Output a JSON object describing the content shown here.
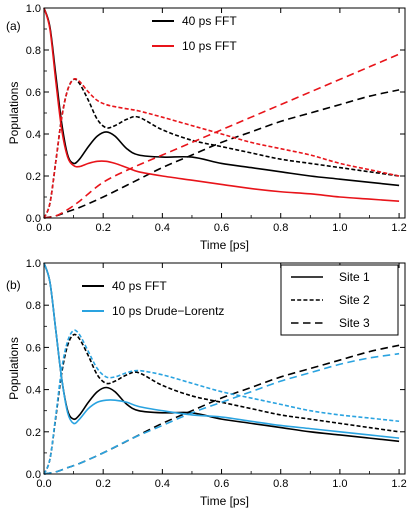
{
  "chart_data": [
    {
      "type": "line",
      "panel_label": "(a)",
      "xlabel": "Time [ps]",
      "ylabel": "Populations",
      "xlim": [
        0,
        1.22
      ],
      "ylim": [
        0,
        1.0
      ],
      "xticks": [
        0.0,
        0.2,
        0.4,
        0.6,
        0.8,
        1.0,
        1.2
      ],
      "xtick_labels": [
        "0.0",
        "0.2",
        "0.4",
        "0.6",
        "0.8",
        "1.0",
        "1.2"
      ],
      "yticks": [
        0.0,
        0.2,
        0.4,
        0.6,
        0.8,
        1.0
      ],
      "ytick_labels": [
        "0.0",
        "0.2",
        "0.4",
        "0.6",
        "0.8",
        "1.0"
      ],
      "grid": false,
      "legend": [
        {
          "label": "40 ps FFT",
          "color": "#000000"
        },
        {
          "label": "10 ps FFT",
          "color": "#e8141a"
        }
      ],
      "legend_position": "top-center",
      "series": [
        {
          "color": "#000000",
          "style": "solid",
          "site": 1,
          "x": [
            0,
            0.02,
            0.04,
            0.06,
            0.08,
            0.1,
            0.12,
            0.15,
            0.18,
            0.21,
            0.24,
            0.28,
            0.32,
            0.4,
            0.5,
            0.6,
            0.7,
            0.8,
            0.9,
            1.0,
            1.1,
            1.2
          ],
          "y": [
            1.0,
            0.91,
            0.68,
            0.45,
            0.3,
            0.26,
            0.28,
            0.34,
            0.39,
            0.41,
            0.39,
            0.33,
            0.3,
            0.29,
            0.29,
            0.26,
            0.24,
            0.22,
            0.2,
            0.185,
            0.17,
            0.155
          ]
        },
        {
          "color": "#000000",
          "style": "dotted",
          "site": 2,
          "x": [
            0,
            0.02,
            0.04,
            0.06,
            0.08,
            0.1,
            0.12,
            0.15,
            0.18,
            0.21,
            0.24,
            0.28,
            0.32,
            0.4,
            0.5,
            0.6,
            0.7,
            0.8,
            0.9,
            1.0,
            1.1,
            1.2
          ],
          "y": [
            0.0,
            0.07,
            0.27,
            0.48,
            0.61,
            0.66,
            0.64,
            0.56,
            0.47,
            0.43,
            0.44,
            0.47,
            0.48,
            0.42,
            0.37,
            0.34,
            0.31,
            0.28,
            0.26,
            0.24,
            0.22,
            0.2
          ]
        },
        {
          "color": "#000000",
          "style": "dashed",
          "site": 3,
          "x": [
            0,
            0.04,
            0.08,
            0.12,
            0.2,
            0.3,
            0.4,
            0.5,
            0.6,
            0.7,
            0.8,
            0.9,
            1.0,
            1.1,
            1.2
          ],
          "y": [
            0.0,
            0.01,
            0.03,
            0.05,
            0.1,
            0.17,
            0.24,
            0.3,
            0.36,
            0.41,
            0.46,
            0.5,
            0.54,
            0.58,
            0.61
          ]
        },
        {
          "color": "#e8141a",
          "style": "solid",
          "site": 1,
          "x": [
            0,
            0.02,
            0.04,
            0.06,
            0.08,
            0.1,
            0.12,
            0.15,
            0.18,
            0.21,
            0.24,
            0.28,
            0.32,
            0.4,
            0.5,
            0.6,
            0.7,
            0.8,
            0.9,
            1.0,
            1.1,
            1.2
          ],
          "y": [
            1.0,
            0.9,
            0.65,
            0.42,
            0.29,
            0.25,
            0.245,
            0.26,
            0.27,
            0.27,
            0.26,
            0.24,
            0.22,
            0.2,
            0.18,
            0.16,
            0.14,
            0.125,
            0.115,
            0.1,
            0.09,
            0.08
          ]
        },
        {
          "color": "#e8141a",
          "style": "dotted",
          "site": 2,
          "x": [
            0,
            0.02,
            0.04,
            0.06,
            0.08,
            0.1,
            0.12,
            0.15,
            0.18,
            0.21,
            0.24,
            0.28,
            0.32,
            0.4,
            0.5,
            0.6,
            0.7,
            0.8,
            0.9,
            1.0,
            1.1,
            1.2
          ],
          "y": [
            0.0,
            0.07,
            0.27,
            0.48,
            0.61,
            0.66,
            0.65,
            0.6,
            0.56,
            0.54,
            0.53,
            0.52,
            0.51,
            0.48,
            0.44,
            0.4,
            0.36,
            0.33,
            0.3,
            0.26,
            0.23,
            0.2
          ]
        },
        {
          "color": "#e8141a",
          "style": "dashed",
          "site": 3,
          "x": [
            0,
            0.04,
            0.08,
            0.12,
            0.2,
            0.3,
            0.4,
            0.5,
            0.6,
            0.7,
            0.8,
            0.9,
            1.0,
            1.1,
            1.2
          ],
          "y": [
            0.0,
            0.01,
            0.04,
            0.08,
            0.17,
            0.24,
            0.3,
            0.36,
            0.42,
            0.48,
            0.54,
            0.6,
            0.66,
            0.72,
            0.78
          ]
        }
      ]
    },
    {
      "type": "line",
      "panel_label": "(b)",
      "xlabel": "Time [ps]",
      "ylabel": "Populations",
      "xlim": [
        0,
        1.22
      ],
      "ylim": [
        0,
        1.0
      ],
      "xticks": [
        0.0,
        0.2,
        0.4,
        0.6,
        0.8,
        1.0,
        1.2
      ],
      "xtick_labels": [
        "0.0",
        "0.2",
        "0.4",
        "0.6",
        "0.8",
        "1.0",
        "1.2"
      ],
      "yticks": [
        0.0,
        0.2,
        0.4,
        0.6,
        0.8,
        1.0
      ],
      "ytick_labels": [
        "0.0",
        "0.2",
        "0.4",
        "0.6",
        "0.8",
        "1.0"
      ],
      "grid": false,
      "legend": [
        {
          "label": "40 ps FFT",
          "color": "#000000"
        },
        {
          "label": "10 ps Drude−Lorentz",
          "color": "#2aa3e0"
        }
      ],
      "legend_position": "top-center",
      "site_legend": [
        {
          "label": "Site 1",
          "style": "solid"
        },
        {
          "label": "Site 2",
          "style": "dotted"
        },
        {
          "label": "Site 3",
          "style": "dashed"
        }
      ],
      "site_legend_position": "top-right",
      "series": [
        {
          "color": "#000000",
          "style": "solid",
          "site": 1,
          "x": [
            0,
            0.02,
            0.04,
            0.06,
            0.08,
            0.1,
            0.12,
            0.15,
            0.18,
            0.21,
            0.24,
            0.28,
            0.32,
            0.4,
            0.5,
            0.6,
            0.7,
            0.8,
            0.9,
            1.0,
            1.1,
            1.2
          ],
          "y": [
            1.0,
            0.91,
            0.68,
            0.45,
            0.3,
            0.26,
            0.28,
            0.34,
            0.39,
            0.41,
            0.39,
            0.33,
            0.3,
            0.29,
            0.29,
            0.26,
            0.24,
            0.22,
            0.2,
            0.185,
            0.17,
            0.155
          ]
        },
        {
          "color": "#000000",
          "style": "dotted",
          "site": 2,
          "x": [
            0,
            0.02,
            0.04,
            0.06,
            0.08,
            0.1,
            0.12,
            0.15,
            0.18,
            0.21,
            0.24,
            0.28,
            0.32,
            0.4,
            0.5,
            0.6,
            0.7,
            0.8,
            0.9,
            1.0,
            1.1,
            1.2
          ],
          "y": [
            0.0,
            0.07,
            0.27,
            0.48,
            0.61,
            0.66,
            0.64,
            0.56,
            0.47,
            0.43,
            0.44,
            0.47,
            0.48,
            0.42,
            0.37,
            0.34,
            0.31,
            0.28,
            0.26,
            0.24,
            0.22,
            0.2
          ]
        },
        {
          "color": "#000000",
          "style": "dashed",
          "site": 3,
          "x": [
            0,
            0.04,
            0.08,
            0.12,
            0.2,
            0.3,
            0.4,
            0.5,
            0.6,
            0.7,
            0.8,
            0.9,
            1.0,
            1.1,
            1.2
          ],
          "y": [
            0.0,
            0.01,
            0.03,
            0.05,
            0.1,
            0.17,
            0.24,
            0.3,
            0.36,
            0.41,
            0.46,
            0.5,
            0.54,
            0.58,
            0.61
          ]
        },
        {
          "color": "#2aa3e0",
          "style": "solid",
          "site": 1,
          "x": [
            0,
            0.02,
            0.04,
            0.06,
            0.08,
            0.1,
            0.12,
            0.15,
            0.18,
            0.21,
            0.24,
            0.28,
            0.32,
            0.4,
            0.5,
            0.6,
            0.7,
            0.8,
            0.9,
            1.0,
            1.1,
            1.2
          ],
          "y": [
            1.0,
            0.91,
            0.68,
            0.45,
            0.29,
            0.24,
            0.26,
            0.31,
            0.34,
            0.35,
            0.35,
            0.34,
            0.32,
            0.3,
            0.28,
            0.27,
            0.25,
            0.23,
            0.215,
            0.2,
            0.185,
            0.17
          ]
        },
        {
          "color": "#2aa3e0",
          "style": "dotted",
          "site": 2,
          "x": [
            0,
            0.02,
            0.04,
            0.06,
            0.08,
            0.1,
            0.12,
            0.15,
            0.18,
            0.21,
            0.24,
            0.28,
            0.32,
            0.4,
            0.5,
            0.6,
            0.7,
            0.8,
            0.9,
            1.0,
            1.1,
            1.2
          ],
          "y": [
            0.0,
            0.07,
            0.28,
            0.5,
            0.63,
            0.68,
            0.66,
            0.58,
            0.5,
            0.46,
            0.46,
            0.48,
            0.49,
            0.47,
            0.43,
            0.39,
            0.36,
            0.33,
            0.3,
            0.28,
            0.265,
            0.25
          ]
        },
        {
          "color": "#2aa3e0",
          "style": "dashed",
          "site": 3,
          "x": [
            0,
            0.04,
            0.08,
            0.12,
            0.2,
            0.3,
            0.4,
            0.5,
            0.6,
            0.7,
            0.8,
            0.9,
            1.0,
            1.1,
            1.2
          ],
          "y": [
            0.0,
            0.01,
            0.03,
            0.05,
            0.1,
            0.17,
            0.23,
            0.29,
            0.34,
            0.39,
            0.44,
            0.48,
            0.52,
            0.55,
            0.57
          ]
        }
      ]
    }
  ]
}
